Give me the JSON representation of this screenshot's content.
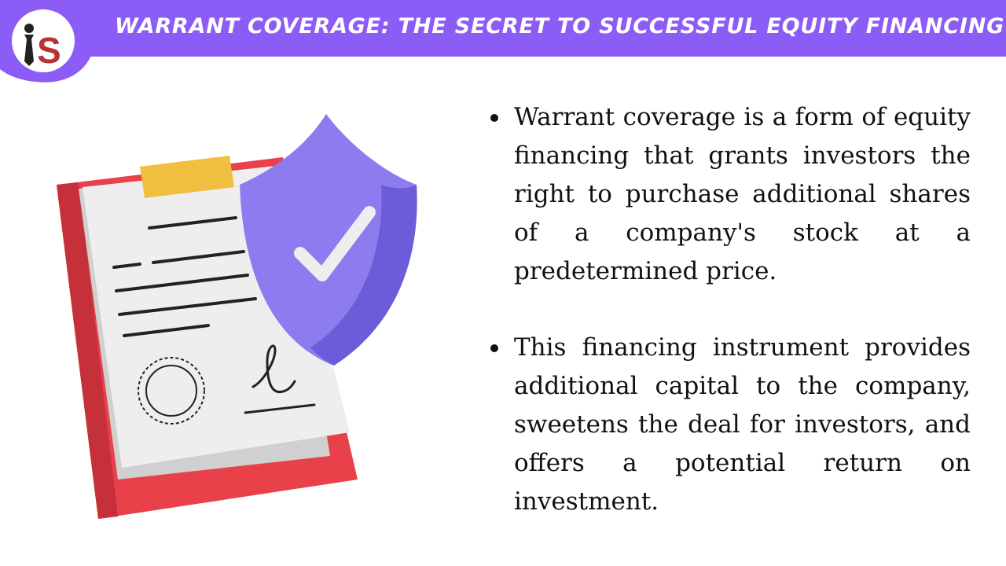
{
  "header": {
    "title": "WARRANT COVERAGE: THE SECRET TO SUCCESSFUL EQUITY FINANCING",
    "background": "#8b5cf6"
  },
  "logo": {
    "text": "PS",
    "colors": {
      "ring": "#8b5cf6",
      "letter": "#b83232"
    }
  },
  "illustration": {
    "icons": [
      "clipboard-icon",
      "shield-check-icon",
      "seal-icon",
      "signature-icon"
    ],
    "colors": {
      "clipboard": "#e8414a",
      "clip": "#f0bf3f",
      "paper": "#eeeeee",
      "shield": "#8d7cf0",
      "shield_shade": "#6b5cd9"
    }
  },
  "bullets": [
    "Warrant coverage is a form of equity financing that grants investors the right to purchase additional shares of a company's stock at a predetermined price.",
    "This financing instrument provides additional capital to the company, sweetens the deal for investors, and offers a potential return on investment."
  ]
}
